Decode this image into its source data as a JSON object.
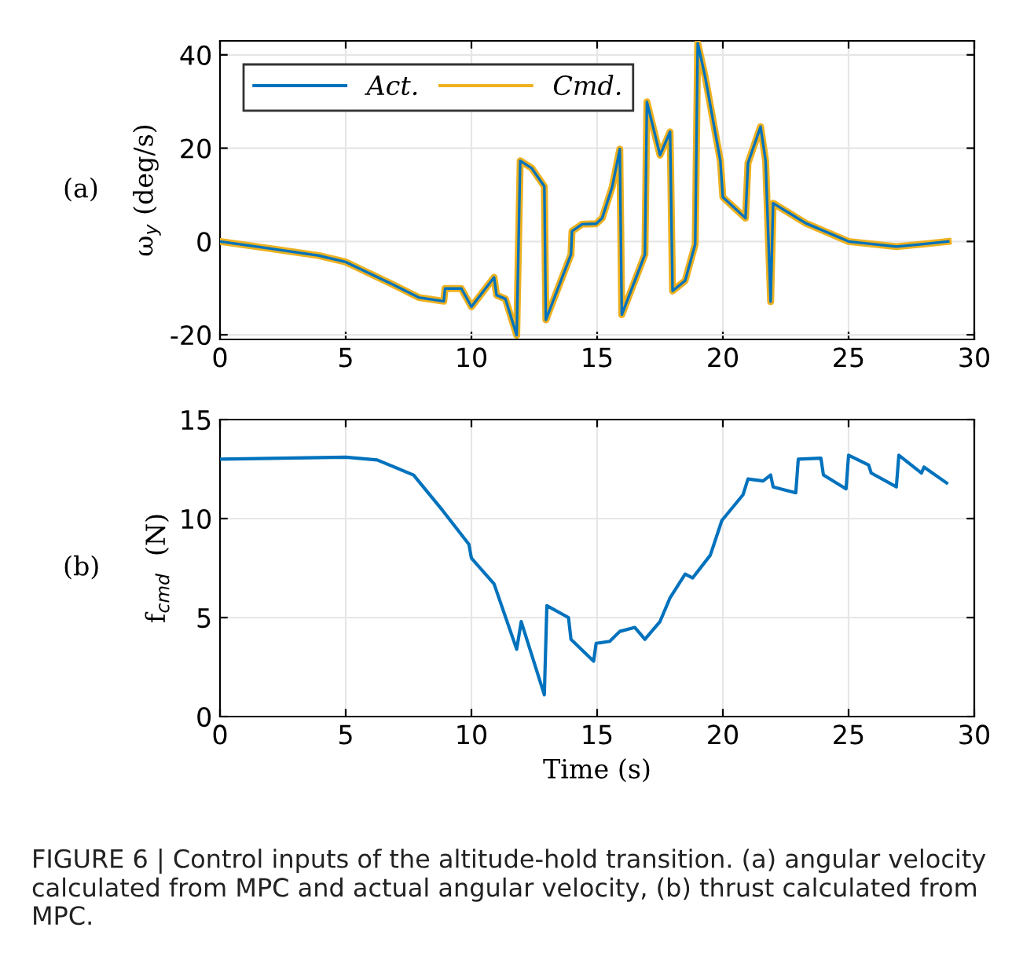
{
  "chart_data": [
    {
      "type": "line",
      "ylabel": "ω$_{y}$ (deg/s)",
      "annotations": [
        "(a)"
      ],
      "xlim": [
        0,
        30
      ],
      "ylim": [
        -21,
        43
      ],
      "xticks": [
        0,
        5,
        10,
        15,
        20,
        25,
        30
      ],
      "yticks": [
        -20,
        0,
        20,
        40
      ],
      "grid": true,
      "legend": "top left",
      "series": [
        {
          "name": "Act.",
          "color": "#0072bd",
          "x": [
            0,
            1.46,
            3.9,
            5,
            6.9,
            7.9,
            8.9,
            8.95,
            9.6,
            10,
            10.9,
            11.0,
            11.35,
            11.8,
            11.94,
            12.4,
            12.9,
            12.96,
            13.96,
            14.0,
            14.4,
            14.96,
            15.2,
            15.6,
            15.9,
            15.98,
            16.9,
            16.98,
            17.5,
            17.9,
            18.0,
            18.5,
            18.9,
            19.0,
            19.3,
            19.9,
            20.0,
            20.9,
            21.0,
            21.5,
            21.7,
            21.9,
            22.0,
            23.3,
            25,
            26.9,
            27.9,
            28.96
          ],
          "values": [
            0,
            -1.1,
            -3,
            -4.4,
            -9.3,
            -12,
            -12.8,
            -10.1,
            -10.1,
            -14,
            -7.7,
            -11.5,
            -12.3,
            -20.1,
            17.3,
            15.7,
            11.8,
            -16.8,
            -2.8,
            2.2,
            3.7,
            3.8,
            5,
            11.7,
            19.8,
            -15.7,
            -2.8,
            29.9,
            18.5,
            23.5,
            -10.6,
            -8.4,
            -0.6,
            42.5,
            35.2,
            17.3,
            9.5,
            5,
            16.8,
            24.6,
            17.3,
            -12.9,
            8.2,
            3.9,
            0,
            -1.1,
            -0.6,
            0
          ]
        },
        {
          "name": "Cmd.",
          "color": "#edb120",
          "x": [
            0,
            1.46,
            3.9,
            5,
            6.9,
            7.9,
            8.9,
            8.95,
            9.6,
            10,
            10.9,
            11.0,
            11.35,
            11.8,
            11.94,
            12.4,
            12.9,
            12.96,
            13.96,
            14.0,
            14.4,
            14.96,
            15.2,
            15.6,
            15.9,
            15.98,
            16.9,
            16.98,
            17.5,
            17.9,
            18.0,
            18.5,
            18.9,
            19.0,
            19.3,
            19.9,
            20.0,
            20.9,
            21.0,
            21.5,
            21.7,
            21.9,
            22.0,
            23.3,
            25,
            26.9,
            27.9,
            28.96
          ],
          "values": [
            0,
            -1.1,
            -3,
            -4.4,
            -9.3,
            -12,
            -12.8,
            -10.1,
            -10.1,
            -14,
            -7.7,
            -11.5,
            -12.3,
            -20.1,
            17.3,
            15.7,
            11.8,
            -16.8,
            -2.8,
            2.2,
            3.7,
            3.8,
            5,
            11.7,
            19.8,
            -15.7,
            -2.8,
            29.9,
            18.5,
            23.5,
            -10.6,
            -8.4,
            -0.6,
            42.5,
            35.2,
            17.3,
            9.5,
            5,
            16.8,
            24.6,
            17.3,
            -12.9,
            8.2,
            3.9,
            0,
            -1.1,
            -0.6,
            0
          ]
        }
      ]
    },
    {
      "type": "line",
      "xlabel": "Time (s)",
      "ylabel": "f$_{cmd}$  (N)",
      "annotations": [
        "(b)",
        "FIGURE 6 | Control inputs of the altitude-hold transition. (a) angular velocity calculated from MPC and actual angular velocity, (b) thrust calculated from MPC."
      ],
      "xlim": [
        0,
        30
      ],
      "ylim": [
        0,
        15
      ],
      "xticks": [
        0,
        5,
        10,
        15,
        20,
        25,
        30
      ],
      "yticks": [
        0,
        5,
        10,
        15
      ],
      "grid": true,
      "series": [
        {
          "color": "#0072bd",
          "x": [
            0,
            5,
            6.25,
            7.7,
            8.86,
            9.9,
            10.0,
            10.9,
            11.8,
            11.98,
            12.9,
            13.0,
            13.86,
            13.96,
            14.86,
            14.96,
            15.5,
            15.9,
            16.5,
            16.9,
            17.5,
            17.9,
            18.5,
            18.8,
            19.5,
            19.96,
            20.8,
            21.0,
            21.6,
            21.9,
            22.0,
            22.9,
            23.0,
            23.9,
            24.0,
            24.9,
            25.0,
            25.8,
            25.9,
            26.9,
            27.0,
            27.9,
            28.0,
            28.9
          ],
          "values": [
            13.0,
            13.1,
            12.96,
            12.2,
            10.4,
            8.7,
            8.0,
            6.7,
            3.4,
            4.8,
            1.1,
            5.6,
            5.0,
            3.9,
            2.8,
            3.7,
            3.8,
            4.3,
            4.5,
            3.9,
            4.8,
            6.0,
            7.2,
            7.0,
            8.15,
            9.9,
            11.2,
            12.0,
            11.9,
            12.2,
            11.6,
            11.3,
            13.0,
            13.05,
            12.2,
            11.5,
            13.2,
            12.7,
            12.3,
            11.6,
            13.2,
            12.3,
            12.6,
            11.8
          ]
        }
      ]
    }
  ]
}
